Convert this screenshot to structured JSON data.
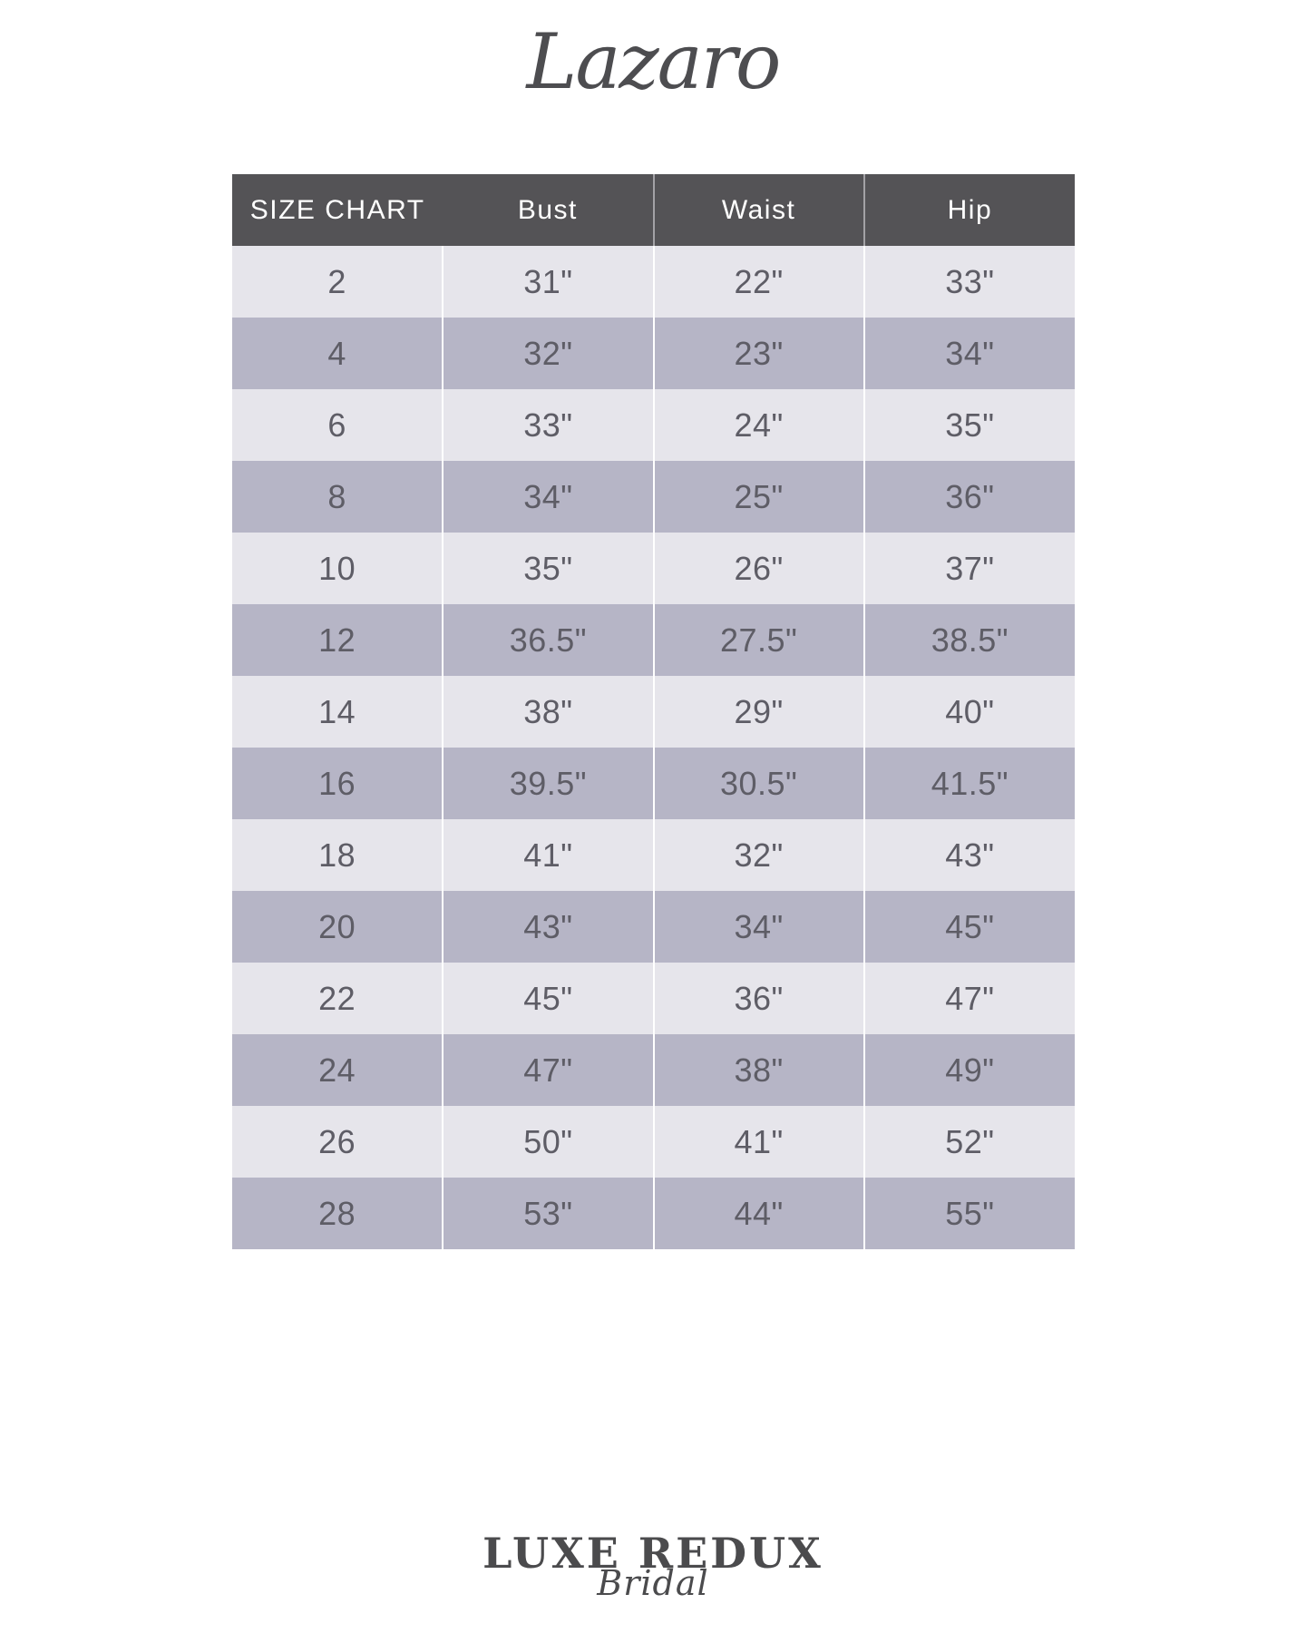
{
  "brand": {
    "name": "Lazaro"
  },
  "table": {
    "header": {
      "size_label": "SIZE CHART",
      "bust_label": "Bust",
      "waist_label": "Waist",
      "hip_label": "Hip"
    },
    "rows": [
      {
        "size": "2",
        "bust": "31\"",
        "waist": "22\"",
        "hip": "33\""
      },
      {
        "size": "4",
        "bust": "32\"",
        "waist": "23\"",
        "hip": "34\""
      },
      {
        "size": "6",
        "bust": "33\"",
        "waist": "24\"",
        "hip": "35\""
      },
      {
        "size": "8",
        "bust": "34\"",
        "waist": "25\"",
        "hip": "36\""
      },
      {
        "size": "10",
        "bust": "35\"",
        "waist": "26\"",
        "hip": "37\""
      },
      {
        "size": "12",
        "bust": "36.5\"",
        "waist": "27.5\"",
        "hip": "38.5\""
      },
      {
        "size": "14",
        "bust": "38\"",
        "waist": "29\"",
        "hip": "40\""
      },
      {
        "size": "16",
        "bust": "39.5\"",
        "waist": "30.5\"",
        "hip": "41.5\""
      },
      {
        "size": "18",
        "bust": "41\"",
        "waist": "32\"",
        "hip": "43\""
      },
      {
        "size": "20",
        "bust": "43\"",
        "waist": "34\"",
        "hip": "45\""
      },
      {
        "size": "22",
        "bust": "45\"",
        "waist": "36\"",
        "hip": "47\""
      },
      {
        "size": "24",
        "bust": "47\"",
        "waist": "38\"",
        "hip": "49\""
      },
      {
        "size": "26",
        "bust": "50\"",
        "waist": "41\"",
        "hip": "52\""
      },
      {
        "size": "28",
        "bust": "53\"",
        "waist": "44\"",
        "hip": "55\""
      }
    ]
  },
  "footer": {
    "logo_line1": "LUXE REDUX",
    "logo_line2": "Bridal"
  },
  "colors": {
    "header_bg": "#545356",
    "header_text": "#ffffff",
    "row_light": "#e6e5eb",
    "row_dark": "#b6b5c6",
    "cell_text": "#5e5d66",
    "logo_text": "#4b4b4d"
  },
  "chart_data": {
    "type": "table",
    "title": "SIZE CHART",
    "brand": "Lazaro",
    "columns": [
      "SIZE CHART",
      "Bust",
      "Waist",
      "Hip"
    ],
    "rows": [
      [
        "2",
        "31\"",
        "22\"",
        "33\""
      ],
      [
        "4",
        "32\"",
        "23\"",
        "34\""
      ],
      [
        "6",
        "33\"",
        "24\"",
        "35\""
      ],
      [
        "8",
        "34\"",
        "25\"",
        "36\""
      ],
      [
        "10",
        "35\"",
        "26\"",
        "37\""
      ],
      [
        "12",
        "36.5\"",
        "27.5\"",
        "38.5\""
      ],
      [
        "14",
        "38\"",
        "29\"",
        "40\""
      ],
      [
        "16",
        "39.5\"",
        "30.5\"",
        "41.5\""
      ],
      [
        "18",
        "41\"",
        "32\"",
        "43\""
      ],
      [
        "20",
        "43\"",
        "34\"",
        "45\""
      ],
      [
        "22",
        "45\"",
        "36\"",
        "47\""
      ],
      [
        "24",
        "47\"",
        "38\"",
        "49\""
      ],
      [
        "26",
        "50\"",
        "41\"",
        "52\""
      ],
      [
        "28",
        "53\"",
        "44\"",
        "55\""
      ]
    ]
  }
}
